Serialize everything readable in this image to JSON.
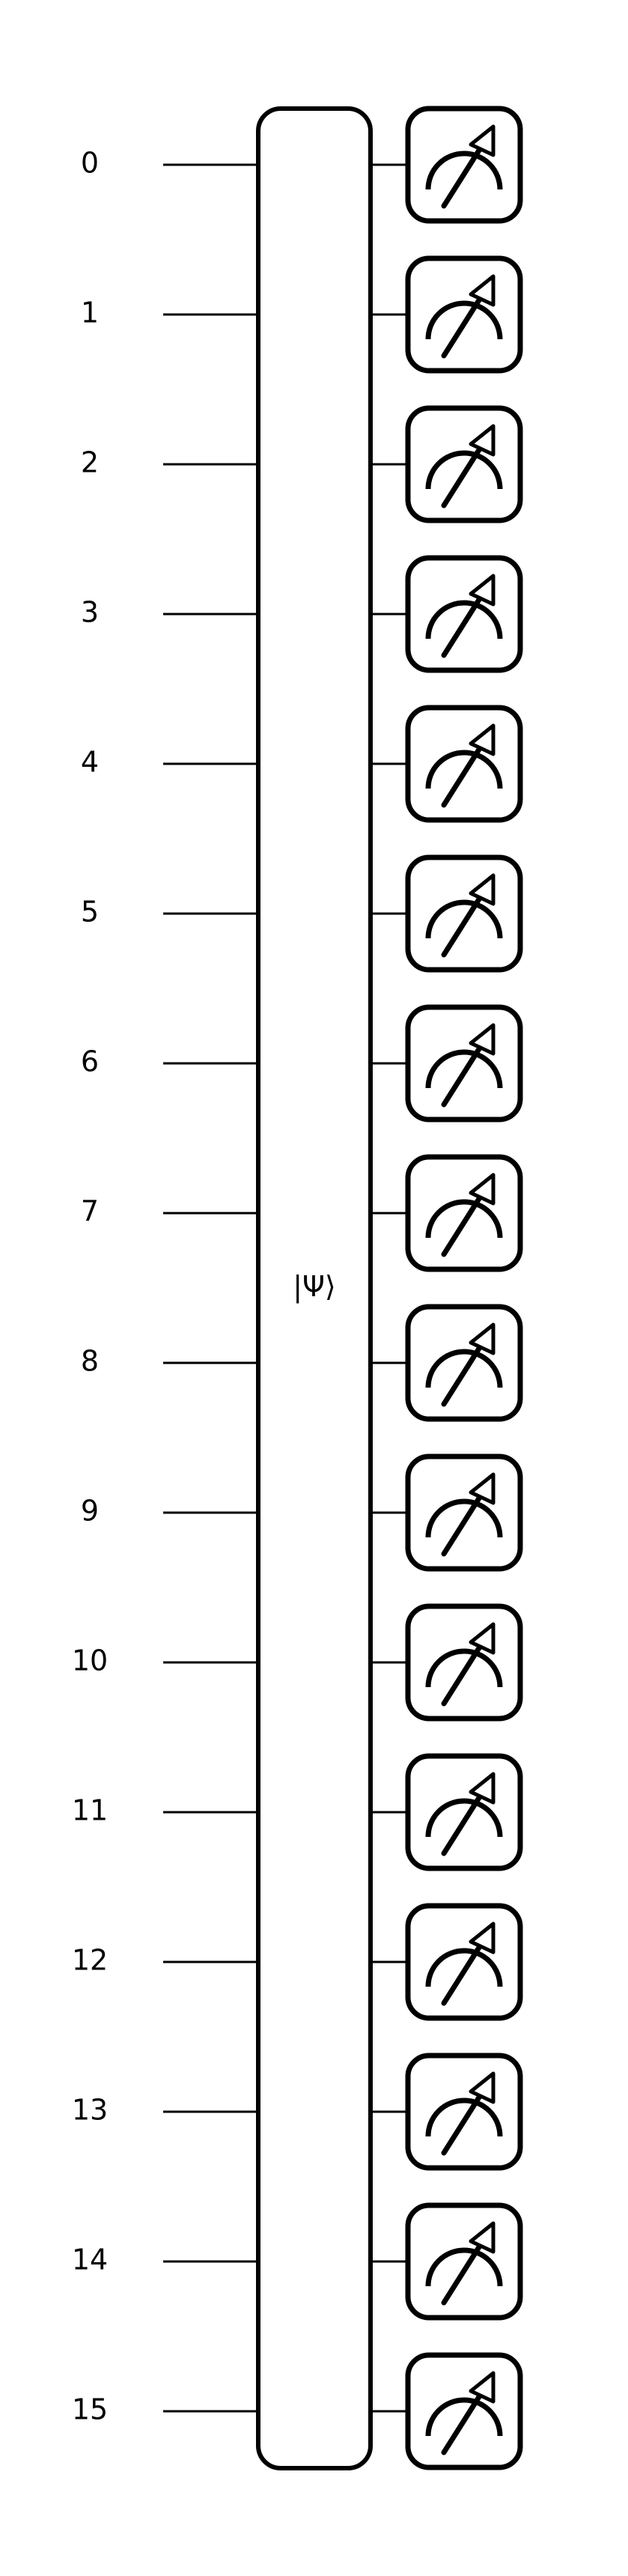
{
  "diagram": {
    "wires": [
      {
        "label": "0"
      },
      {
        "label": "1"
      },
      {
        "label": "2"
      },
      {
        "label": "3"
      },
      {
        "label": "4"
      },
      {
        "label": "5"
      },
      {
        "label": "6"
      },
      {
        "label": "7"
      },
      {
        "label": "8"
      },
      {
        "label": "9"
      },
      {
        "label": "10"
      },
      {
        "label": "11"
      },
      {
        "label": "12"
      },
      {
        "label": "13"
      },
      {
        "label": "14"
      },
      {
        "label": "15"
      }
    ],
    "state_prep_gate": {
      "label": "|Ψ⟩"
    },
    "measurement_icon": "meter-icon",
    "colors": {
      "stroke": "#000000",
      "fill": "#ffffff"
    }
  }
}
